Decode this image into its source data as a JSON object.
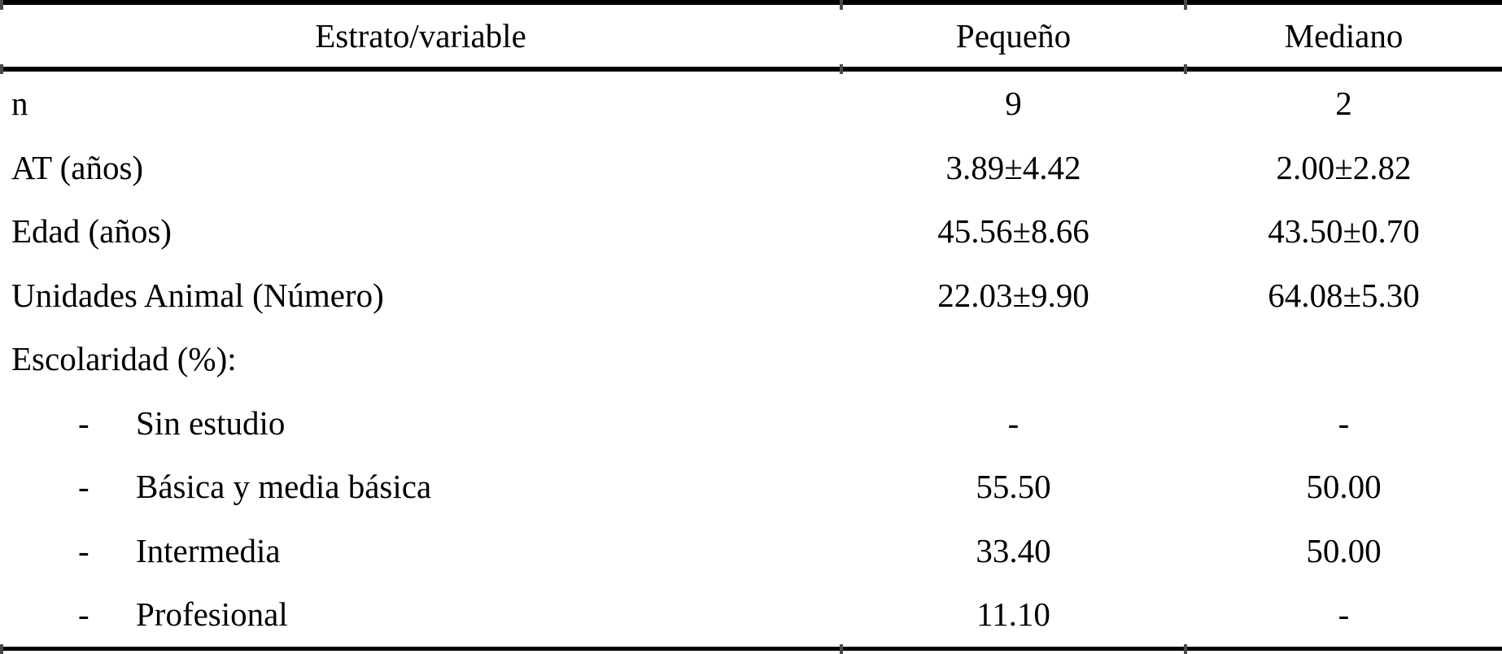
{
  "page": {
    "background": "#ffffff",
    "text_color": "#000000",
    "rule_color": "#000000"
  },
  "table": {
    "columns": [
      "Estrato/variable",
      "Pequeño",
      "Mediano"
    ],
    "rows": [
      {
        "label": "n",
        "values": [
          "9",
          "2"
        ]
      },
      {
        "label": "AT (años)",
        "values": [
          "3.89±4.42",
          "2.00±2.82"
        ]
      },
      {
        "label": "Edad (años)",
        "values": [
          "45.56±8.66",
          "43.50±0.70"
        ]
      },
      {
        "label": "Unidades Animal (Número)",
        "values": [
          "22.03±9.90",
          "64.08±5.30"
        ]
      },
      {
        "label": "Escolaridad (%):",
        "values": [
          "",
          ""
        ]
      },
      {
        "label": "Sin estudio",
        "bullet": "-",
        "values": [
          "-",
          "-"
        ]
      },
      {
        "label": "Básica y media básica",
        "bullet": "-",
        "values": [
          "55.50",
          "50.00"
        ]
      },
      {
        "label": "Intermedia",
        "bullet": "-",
        "values": [
          "33.40",
          "50.00"
        ]
      },
      {
        "label": "Profesional",
        "bullet": "-",
        "values": [
          "11.10",
          "-"
        ]
      }
    ]
  }
}
